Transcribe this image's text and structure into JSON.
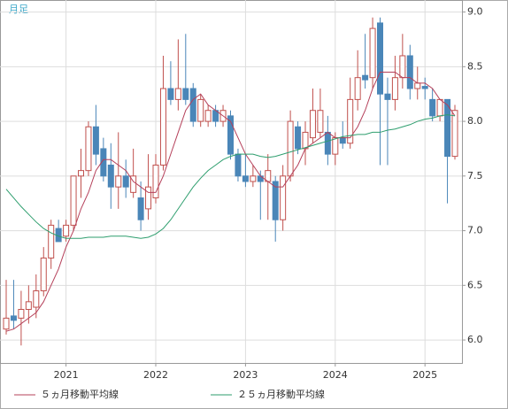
{
  "chart_data": {
    "type": "candlestick",
    "title": "月足",
    "categories": [
      null,
      null,
      null,
      null,
      null,
      null,
      null,
      null,
      "2021",
      null,
      null,
      null,
      null,
      null,
      null,
      null,
      null,
      null,
      null,
      null,
      "2022",
      null,
      null,
      null,
      null,
      null,
      null,
      null,
      null,
      null,
      null,
      null,
      "2023",
      null,
      null,
      null,
      null,
      null,
      null,
      null,
      null,
      null,
      null,
      null,
      "2024",
      null,
      null,
      null,
      null,
      null,
      null,
      null,
      null,
      null,
      null,
      null,
      "2025",
      null,
      null,
      null,
      null
    ],
    "open": [
      6.1,
      6.22,
      6.2,
      6.28,
      6.3,
      6.45,
      6.75,
      7.02,
      6.95,
      7.05,
      7.5,
      7.55,
      7.95,
      7.75,
      7.6,
      7.4,
      7.5,
      7.35,
      7.3,
      7.2,
      7.3,
      7.6,
      8.3,
      8.2,
      8.3,
      8.3,
      8.0,
      8.0,
      8.1,
      8.0,
      8.05,
      7.7,
      7.5,
      7.45,
      7.5,
      7.45,
      7.45,
      7.1,
      7.5,
      7.95,
      7.75,
      7.85,
      7.9,
      7.9,
      7.7,
      7.85,
      7.8,
      8.2,
      8.42,
      8.4,
      8.9,
      8.25,
      8.2,
      8.4,
      8.6,
      8.3,
      8.32,
      8.2,
      8.05,
      8.2,
      7.68
    ],
    "high": [
      6.55,
      6.55,
      6.45,
      6.5,
      6.6,
      6.85,
      7.1,
      7.1,
      7.1,
      7.5,
      7.75,
      8.0,
      8.15,
      7.85,
      7.8,
      7.9,
      7.65,
      7.75,
      7.45,
      7.7,
      7.7,
      8.6,
      8.55,
      8.75,
      8.8,
      8.35,
      8.25,
      8.15,
      8.15,
      8.15,
      8.1,
      7.75,
      7.7,
      7.6,
      7.55,
      7.7,
      7.5,
      7.6,
      8.1,
      8.0,
      8.0,
      8.3,
      8.3,
      8.05,
      7.9,
      8.0,
      8.4,
      8.65,
      8.8,
      8.95,
      8.95,
      8.4,
      8.6,
      8.8,
      8.7,
      8.5,
      8.4,
      8.3,
      8.2,
      8.2,
      8.15
    ],
    "low": [
      6.05,
      6.1,
      5.95,
      6.15,
      6.2,
      6.4,
      6.65,
      6.9,
      6.9,
      7.0,
      7.3,
      7.5,
      7.6,
      7.45,
      7.2,
      7.2,
      7.3,
      7.3,
      7.0,
      7.1,
      7.25,
      7.55,
      8.15,
      8.1,
      8.15,
      7.95,
      7.95,
      7.95,
      7.95,
      7.95,
      7.65,
      7.45,
      7.4,
      7.4,
      7.1,
      7.1,
      6.9,
      7.0,
      7.45,
      7.7,
      7.6,
      7.8,
      7.85,
      7.6,
      7.6,
      7.75,
      7.75,
      8.1,
      8.3,
      8.3,
      7.6,
      7.6,
      8.1,
      8.3,
      8.2,
      8.2,
      8.2,
      8.0,
      8.0,
      7.25,
      7.65
    ],
    "close": [
      6.2,
      6.18,
      6.28,
      6.35,
      6.45,
      6.75,
      7.05,
      6.9,
      7.05,
      7.5,
      7.55,
      7.95,
      7.7,
      7.5,
      7.4,
      7.5,
      7.4,
      7.5,
      7.1,
      7.4,
      7.6,
      8.3,
      8.2,
      8.3,
      8.2,
      8.0,
      8.2,
      8.1,
      8.0,
      8.1,
      7.7,
      7.5,
      7.45,
      7.5,
      7.45,
      7.55,
      7.1,
      7.5,
      8.0,
      7.75,
      7.9,
      8.1,
      8.1,
      7.7,
      7.85,
      7.8,
      8.2,
      8.4,
      8.38,
      8.85,
      8.25,
      8.2,
      8.4,
      8.6,
      8.3,
      8.35,
      8.3,
      8.05,
      8.2,
      7.68,
      8.1
    ],
    "up_color": "#c0504d",
    "down_color": "#4a86b8",
    "series": [
      {
        "name": "５ヵ月移動平均線",
        "color": "#b5405a",
        "values": [
          6.08,
          6.1,
          6.15,
          6.2,
          6.25,
          6.35,
          6.5,
          6.65,
          6.85,
          7.0,
          7.2,
          7.35,
          7.55,
          7.65,
          7.65,
          7.6,
          7.55,
          7.45,
          7.4,
          7.35,
          7.35,
          7.5,
          7.7,
          7.9,
          8.1,
          8.2,
          8.25,
          8.15,
          8.1,
          8.05,
          8.0,
          7.85,
          7.7,
          7.6,
          7.5,
          7.45,
          7.4,
          7.4,
          7.5,
          7.6,
          7.75,
          7.8,
          7.85,
          7.9,
          7.85,
          7.85,
          7.85,
          7.95,
          8.1,
          8.3,
          8.45,
          8.45,
          8.45,
          8.4,
          8.4,
          8.35,
          8.35,
          8.3,
          8.2,
          8.15,
          8.05
        ]
      },
      {
        "name": "２５ヵ月移動平均線",
        "color": "#2e9e6e",
        "values": [
          7.38,
          7.3,
          7.22,
          7.15,
          7.08,
          7.02,
          6.98,
          6.95,
          6.93,
          6.93,
          6.93,
          6.94,
          6.94,
          6.94,
          6.95,
          6.95,
          6.95,
          6.94,
          6.93,
          6.94,
          6.97,
          7.02,
          7.1,
          7.2,
          7.3,
          7.4,
          7.48,
          7.55,
          7.6,
          7.65,
          7.68,
          7.7,
          7.7,
          7.7,
          7.68,
          7.67,
          7.68,
          7.7,
          7.72,
          7.74,
          7.76,
          7.78,
          7.8,
          7.82,
          7.84,
          7.86,
          7.87,
          7.88,
          7.88,
          7.9,
          7.9,
          7.92,
          7.93,
          7.95,
          7.97,
          8.0,
          8.02,
          8.03,
          8.05,
          8.06,
          8.05
        ]
      }
    ],
    "ylim": [
      5.79,
      9.11
    ],
    "yticks": [
      {
        "value": 6.0,
        "label": "6.0"
      },
      6.5,
      {
        "value": 7.0,
        "label": "7.0"
      },
      7.5,
      {
        "value": 8.0,
        "label": "8.0"
      },
      8.5,
      {
        "value": 9.0,
        "label": "9.0"
      }
    ],
    "grid": true
  }
}
